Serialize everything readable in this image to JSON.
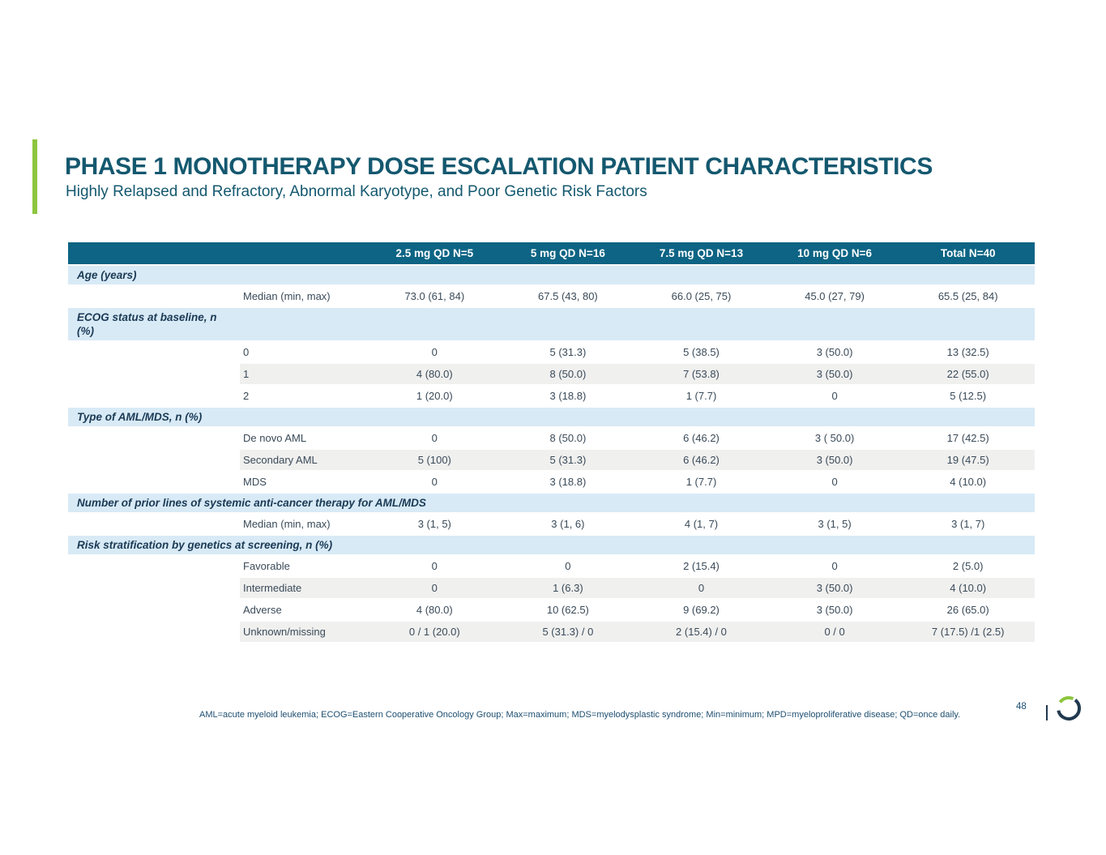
{
  "slide": {
    "title": "PHASE 1 MONOTHERAPY DOSE ESCALATION PATIENT CHARACTERISTICS",
    "subtitle": "Highly Relapsed and Refractory, Abnormal Karyotype, and Poor Genetic Risk Factors"
  },
  "table": {
    "columns": [
      "2.5 mg QD N=5",
      "5 mg QD N=16",
      "7.5 mg QD N=13",
      "10 mg QD N=6",
      "Total N=40"
    ],
    "rows": [
      {
        "type": "section",
        "label": "Age (years)"
      },
      {
        "type": "data",
        "label": "Median (min, max)",
        "shaded": false,
        "values": [
          "73.0 (61, 84)",
          "67.5 (43, 80)",
          "66.0 (25, 75)",
          "45.0 (27, 79)",
          "65.5 (25, 84)"
        ]
      },
      {
        "type": "section",
        "label": "ECOG status at baseline, n\n(%)"
      },
      {
        "type": "data",
        "label": "0",
        "shaded": false,
        "values": [
          "0",
          "5 (31.3)",
          "5 (38.5)",
          "3 (50.0)",
          "13 (32.5)"
        ]
      },
      {
        "type": "data",
        "label": "1",
        "shaded": true,
        "values": [
          "4 (80.0)",
          "8 (50.0)",
          "7 (53.8)",
          "3 (50.0)",
          "22 (55.0)"
        ]
      },
      {
        "type": "data",
        "label": "2",
        "shaded": false,
        "values": [
          "1 (20.0)",
          "3 (18.8)",
          "1 (7.7)",
          "0",
          "5 (12.5)"
        ]
      },
      {
        "type": "section",
        "label": "Type of AML/MDS, n (%)"
      },
      {
        "type": "data",
        "label": "De novo AML",
        "shaded": false,
        "values": [
          "0",
          "8 (50.0)",
          "6 (46.2)",
          "3 ( 50.0)",
          "17 (42.5)"
        ]
      },
      {
        "type": "data",
        "label": "Secondary AML",
        "shaded": true,
        "values": [
          "5 (100)",
          "5 (31.3)",
          "6 (46.2)",
          "3 (50.0)",
          "19 (47.5)"
        ]
      },
      {
        "type": "data",
        "label": "MDS",
        "shaded": false,
        "values": [
          "0",
          "3 (18.8)",
          "1 (7.7)",
          "0",
          "4 (10.0)"
        ]
      },
      {
        "type": "section",
        "label": "Number of prior lines of systemic anti-cancer therapy for AML/MDS"
      },
      {
        "type": "data",
        "label": "Median (min, max)",
        "shaded": false,
        "values": [
          "3 (1, 5)",
          "3 (1, 6)",
          "4 (1, 7)",
          "3 (1, 5)",
          "3 (1, 7)"
        ]
      },
      {
        "type": "section",
        "label": "Risk stratification by genetics at screening, n (%)"
      },
      {
        "type": "data",
        "label": "Favorable",
        "shaded": false,
        "values": [
          "0",
          "0",
          "2 (15.4)",
          "0",
          "2 (5.0)"
        ]
      },
      {
        "type": "data",
        "label": "Intermediate",
        "shaded": true,
        "values": [
          "0",
          "1 (6.3)",
          "0",
          "3 (50.0)",
          "4 (10.0)"
        ]
      },
      {
        "type": "data",
        "label": "Adverse",
        "shaded": false,
        "values": [
          "4 (80.0)",
          "10 (62.5)",
          "9 (69.2)",
          "3 (50.0)",
          "26 (65.0)"
        ]
      },
      {
        "type": "data",
        "label": "Unknown/missing",
        "shaded": true,
        "values": [
          "0 / 1 (20.0)",
          "5 (31.3) / 0",
          "2 (15.4) / 0",
          "0 / 0",
          "7 (17.5) /1 (2.5)"
        ]
      }
    ]
  },
  "footer": {
    "abbreviations": "AML=acute myeloid leukemia; ECOG=Eastern Cooperative Oncology Group; Max=maximum; MDS=myelodysplastic syndrome; Min=minimum; MPD=myeloproliferative disease; QD=once daily.",
    "page_number": "48"
  },
  "colors": {
    "accent_green": "#8dc63f",
    "header_teal": "#0d6484",
    "band_blue": "#d8eaf6",
    "row_gray": "#f0f0ef",
    "title_teal": "#14586f",
    "section_navy": "#1b3a55",
    "text_dark": "#3a4a58",
    "footer_navy": "#1d4e70",
    "logo_navy": "#20394f"
  }
}
